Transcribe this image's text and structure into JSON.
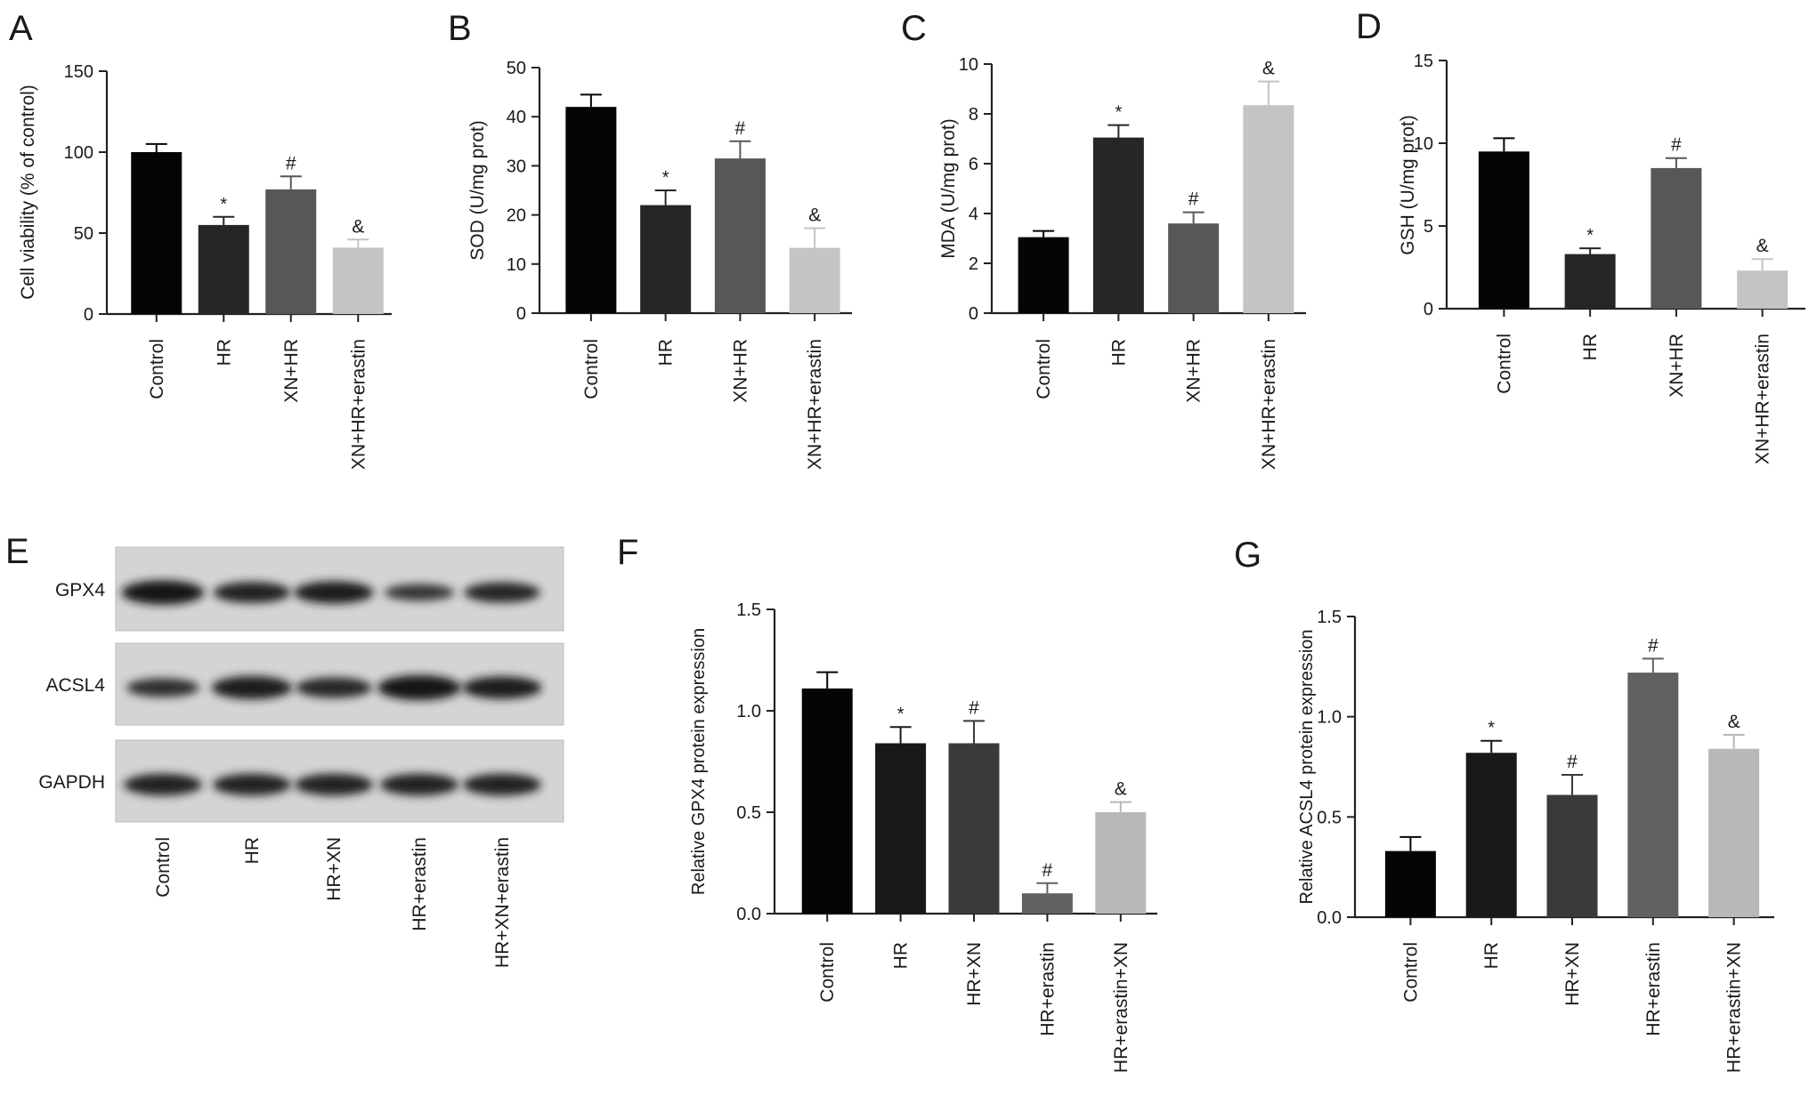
{
  "chart_data": [
    {
      "panel": "A",
      "type": "bar",
      "categories": [
        "Control",
        "HR",
        "XN+HR",
        "XN+HR+erastin"
      ],
      "values": [
        100,
        55,
        77,
        41
      ],
      "errors": [
        5,
        5,
        8,
        5
      ],
      "annotations": [
        "",
        "*",
        "#",
        "&"
      ],
      "ylabel": "Cell viability (% of control)",
      "ylim": [
        0,
        150
      ],
      "yticks": [
        "0",
        "50",
        "100",
        "150"
      ],
      "colors": [
        "#050505",
        "#262626",
        "#575757",
        "#c4c4c4"
      ]
    },
    {
      "panel": "B",
      "type": "bar",
      "categories": [
        "Control",
        "HR",
        "XN+HR",
        "XN+HR+erastin"
      ],
      "values": [
        42,
        22,
        31.5,
        13.3
      ],
      "errors": [
        2.5,
        3,
        3.5,
        4
      ],
      "annotations": [
        "",
        "*",
        "#",
        "&"
      ],
      "ylabel": "SOD (U/mg prot)",
      "ylim": [
        0,
        50
      ],
      "yticks": [
        "0",
        "10",
        "20",
        "30",
        "40",
        "50"
      ],
      "colors": [
        "#050505",
        "#262626",
        "#575757",
        "#c4c4c4"
      ]
    },
    {
      "panel": "C",
      "type": "bar",
      "categories": [
        "Control",
        "HR",
        "XN+HR",
        "XN+HR+erastin"
      ],
      "values": [
        3.05,
        7.05,
        3.6,
        8.35
      ],
      "errors": [
        0.25,
        0.5,
        0.45,
        0.95
      ],
      "annotations": [
        "",
        "*",
        "#",
        "&"
      ],
      "ylabel": "MDA (U/mg prot)",
      "ylim": [
        0,
        10
      ],
      "yticks": [
        "0",
        "2",
        "4",
        "6",
        "8",
        "10"
      ],
      "colors": [
        "#050505",
        "#262626",
        "#575757",
        "#c4c4c4"
      ]
    },
    {
      "panel": "D",
      "type": "bar",
      "categories": [
        "Control",
        "HR",
        "XN+HR",
        "XN+HR+erastin"
      ],
      "values": [
        9.5,
        3.3,
        8.5,
        2.3
      ],
      "errors": [
        0.8,
        0.35,
        0.6,
        0.7
      ],
      "annotations": [
        "",
        "*",
        "#",
        "&"
      ],
      "ylabel": "GSH (U/mg prot)",
      "ylim": [
        0,
        15
      ],
      "yticks": [
        "0",
        "5",
        "10",
        "15"
      ],
      "colors": [
        "#050505",
        "#262626",
        "#575757",
        "#c4c4c4"
      ]
    },
    {
      "panel": "F",
      "type": "bar",
      "categories": [
        "Control",
        "HR",
        "HR+XN",
        "HR+erastin",
        "HR+erastin+XN"
      ],
      "values": [
        1.11,
        0.84,
        0.84,
        0.1,
        0.5
      ],
      "errors": [
        0.08,
        0.08,
        0.11,
        0.05,
        0.05
      ],
      "annotations": [
        "",
        "*",
        "#",
        "#",
        "&"
      ],
      "ylabel": "Relative GPX4 protein expression",
      "ylim": [
        0,
        1.5
      ],
      "yticks": [
        "0.0",
        "0.5",
        "1.0",
        "1.5"
      ],
      "colors": [
        "#050505",
        "#181818",
        "#3a3a3a",
        "#616161",
        "#b8b8b8"
      ]
    },
    {
      "panel": "G",
      "type": "bar",
      "categories": [
        "Control",
        "HR",
        "HR+XN",
        "HR+erastin",
        "HR+erastin+XN"
      ],
      "values": [
        0.33,
        0.82,
        0.61,
        1.22,
        0.84
      ],
      "errors": [
        0.07,
        0.06,
        0.1,
        0.07,
        0.07
      ],
      "annotations": [
        "",
        "*",
        "#",
        "#",
        "&"
      ],
      "ylabel": "Relative ACSL4 protein expression",
      "ylim": [
        0,
        1.5
      ],
      "yticks": [
        "0.0",
        "0.5",
        "1.0",
        "1.5"
      ],
      "colors": [
        "#050505",
        "#181818",
        "#3a3a3a",
        "#616161",
        "#b8b8b8"
      ]
    }
  ],
  "blot": {
    "panel": "E",
    "rows": [
      "GPX4",
      "ACSL4",
      "GAPDH"
    ],
    "lanes": [
      "Control",
      "HR",
      "HR+XN",
      "HR+erastin",
      "HR+XN+erastin"
    ],
    "band_intensity": [
      [
        0.95,
        0.7,
        0.8,
        0.35,
        0.65
      ],
      [
        0.5,
        0.85,
        0.65,
        1.0,
        0.8
      ],
      [
        0.75,
        0.75,
        0.75,
        0.75,
        0.75
      ]
    ]
  },
  "panel_letters": [
    "A",
    "B",
    "C",
    "D",
    "E",
    "F",
    "G"
  ]
}
